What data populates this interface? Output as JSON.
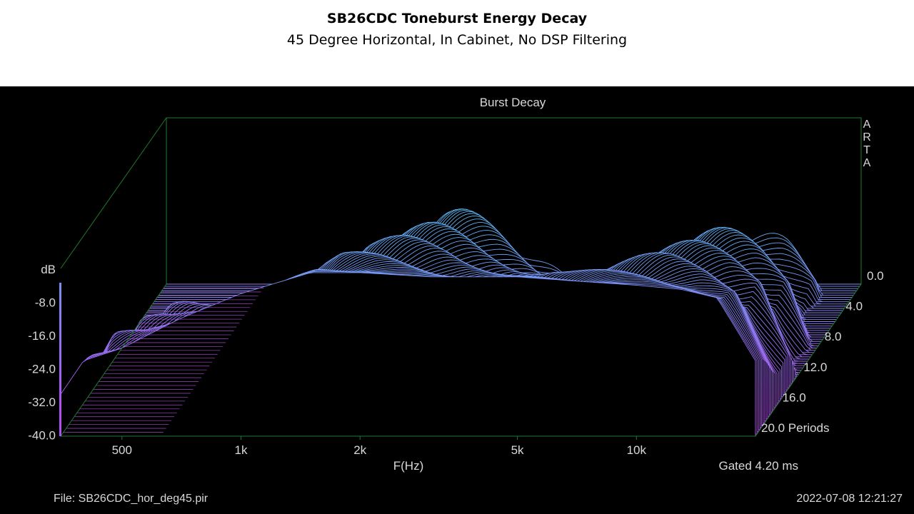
{
  "header": {
    "title": "SB26CDC Toneburst Energy Decay",
    "subtitle": "45 Degree Horizontal, In Cabinet, No DSP Filtering"
  },
  "footer": {
    "file": "File: SB26CDC_hor_deg45.pir",
    "datetime": "2022-07-08  12:21:27",
    "gated": "Gated 4.20 ms"
  },
  "colors": {
    "background": "#000000",
    "top_color": "#2ee6f0",
    "bottom_color": "#b44ef2",
    "floor_color": "#c25af0",
    "frame": "#1e7a2a",
    "text": "#d8d8d8"
  },
  "chart_data": {
    "type": "waterfall",
    "title": "Burst Decay",
    "brand": "ARTA",
    "xlabel": "F(Hz)",
    "zlabel": "Periods",
    "ylabel": "dB",
    "x_scale": "log",
    "x_ticks": [
      "500",
      "1k",
      "2k",
      "5k",
      "10k"
    ],
    "y_ticks": [
      "dB",
      "-8.0",
      "-16.0",
      "-24.0",
      "-32.0",
      "-40.0"
    ],
    "z_ticks": [
      "0.0",
      "4.0",
      "8.0",
      "12.0",
      "16.0",
      "20.0 Periods"
    ],
    "ylim": [
      -40,
      0
    ],
    "zlim": [
      0,
      20
    ],
    "xlim": [
      350,
      20000
    ],
    "first_slice_profile": {
      "freq_hz": [
        350,
        400,
        500,
        700,
        1000,
        1500,
        2000,
        3000,
        5000,
        7000,
        10000,
        13000,
        16000,
        20000
      ],
      "level_db": [
        -30,
        -22,
        -19,
        -12,
        -6,
        -1,
        -1,
        -2,
        -2,
        -3,
        -4,
        -5,
        -7,
        -22
      ]
    }
  }
}
